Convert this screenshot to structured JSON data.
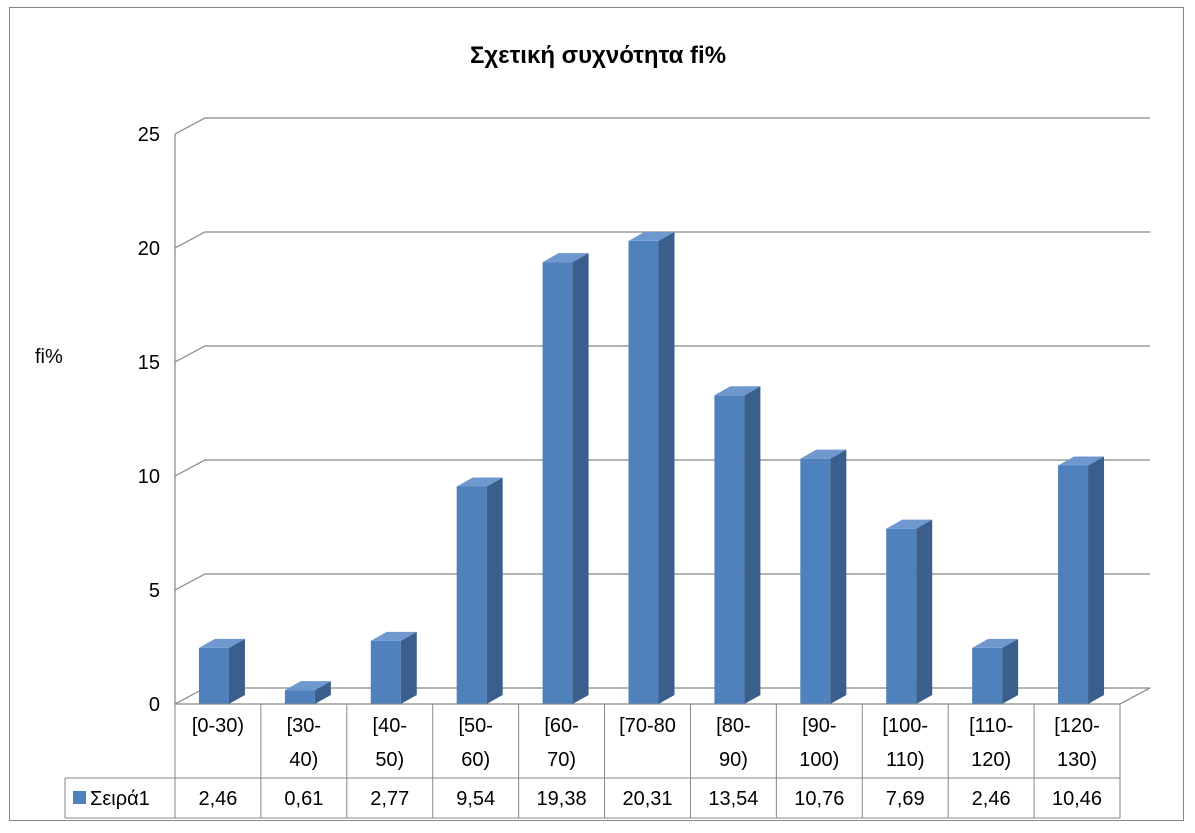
{
  "chart_data": {
    "type": "bar",
    "title": "Σχετική συχνότητα fi%",
    "xlabel": "",
    "ylabel": "fi%",
    "ylim": [
      0,
      25
    ],
    "yticks": [
      "0",
      "5",
      "10",
      "15",
      "20",
      "25"
    ],
    "categories": [
      [
        "[0-30)"
      ],
      [
        "[30-",
        "40)"
      ],
      [
        "[40-",
        "50)"
      ],
      [
        "[50-",
        "60)"
      ],
      [
        "[60-",
        "70)"
      ],
      [
        "[70-80"
      ],
      [
        "[80-",
        "90)"
      ],
      [
        "[90-",
        "100)"
      ],
      [
        "[100-",
        "110)"
      ],
      [
        "[110-",
        "120)"
      ],
      [
        "[120-",
        "130)"
      ]
    ],
    "series": [
      {
        "name": "Σειρά1",
        "values": [
          2.46,
          0.61,
          2.77,
          9.54,
          19.38,
          20.31,
          13.54,
          10.76,
          7.69,
          2.46,
          10.46
        ],
        "labels": [
          "2,46",
          "0,61",
          "2,77",
          "9,54",
          "19,38",
          "20,31",
          "13,54",
          "10,76",
          "7,69",
          "2,46",
          "10,46"
        ],
        "color": "#4F81BD"
      }
    ],
    "grid": true,
    "legend": "data-table-bottom-left",
    "style": "3d-column"
  }
}
